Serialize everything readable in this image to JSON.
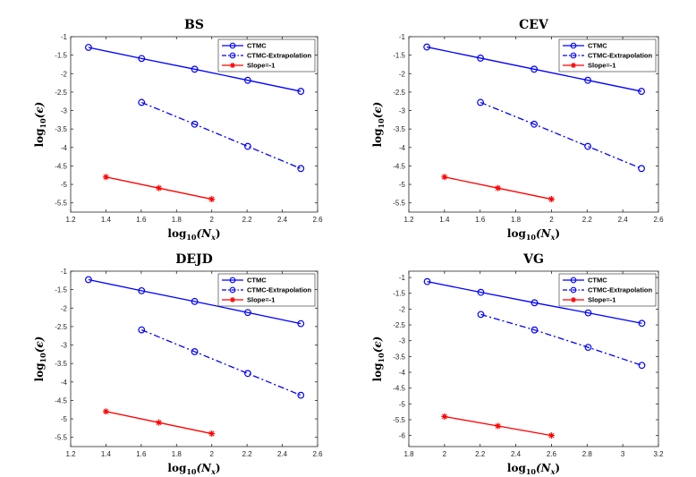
{
  "figure": {
    "background": "#ffffff",
    "series_colors": {
      "CTMC": "#0000ff",
      "CTMC-Extrapolation": "#0000ff",
      "Slope=-1": "#ff0000"
    }
  },
  "chart_data": [
    {
      "type": "line",
      "title": "BS",
      "xlabel": "log",
      "xlabel_sub": "10",
      "xlabel_var": "(N",
      "xlabel_var_sub": "x",
      "xlabel_end": ")",
      "ylabel": "log",
      "ylabel_sub": "10",
      "ylabel_var": "(ϵ)",
      "xlim": [
        1.2,
        2.6
      ],
      "ylim": [
        -5.75,
        -1
      ],
      "xticks": [
        1.2,
        1.4,
        1.6,
        1.8,
        2,
        2.2,
        2.4,
        2.6
      ],
      "xtick_labels": [
        "1.2",
        "1.4",
        "1.6",
        "1.8",
        "2",
        "2.2",
        "2.4",
        "2.6"
      ],
      "yticks": [
        -1,
        -1.5,
        -2,
        -2.5,
        -3,
        -3.5,
        -4,
        -4.5,
        -5,
        -5.5
      ],
      "ytick_labels": [
        "-1",
        "-1.5",
        "-2",
        "-2.5",
        "-3",
        "-3.5",
        "-4",
        "-4.5",
        "-5",
        "-5.5"
      ],
      "legend_position": "top-right",
      "series": [
        {
          "name": "CTMC",
          "style": "solid",
          "marker": "circle",
          "color": "#0000ff",
          "x": [
            1.301,
            1.602,
            1.903,
            2.204,
            2.505
          ],
          "y": [
            -1.29,
            -1.59,
            -1.88,
            -2.18,
            -2.48
          ]
        },
        {
          "name": "CTMC-Extrapolation",
          "style": "dashdot",
          "marker": "circle",
          "color": "#0000ff",
          "x": [
            1.602,
            1.903,
            2.204,
            2.505
          ],
          "y": [
            -2.78,
            -3.37,
            -3.97,
            -4.57
          ]
        },
        {
          "name": "Slope=-1",
          "style": "solid",
          "marker": "star",
          "color": "#ff0000",
          "x": [
            1.4,
            1.7,
            2.0
          ],
          "y": [
            -4.8,
            -5.1,
            -5.4
          ]
        }
      ]
    },
    {
      "type": "line",
      "title": "CEV",
      "xlabel": "log",
      "xlabel_sub": "10",
      "xlabel_var": "(N",
      "xlabel_var_sub": "x",
      "xlabel_end": ")",
      "ylabel": "log",
      "ylabel_sub": "10",
      "ylabel_var": "(ϵ)",
      "xlim": [
        1.2,
        2.6
      ],
      "ylim": [
        -5.75,
        -1
      ],
      "xticks": [
        1.2,
        1.4,
        1.6,
        1.8,
        2,
        2.2,
        2.4,
        2.6
      ],
      "xtick_labels": [
        "1.2",
        "1.4",
        "1.6",
        "1.8",
        "2",
        "2.2",
        "2.4",
        "2.6"
      ],
      "yticks": [
        -1,
        -1.5,
        -2,
        -2.5,
        -3,
        -3.5,
        -4,
        -4.5,
        -5,
        -5.5
      ],
      "ytick_labels": [
        "-1",
        "-1.5",
        "-2",
        "-2.5",
        "-3",
        "-3.5",
        "-4",
        "-4.5",
        "-5",
        "-5.5"
      ],
      "legend_position": "top-right",
      "series": [
        {
          "name": "CTMC",
          "style": "solid",
          "marker": "circle",
          "color": "#0000ff",
          "x": [
            1.301,
            1.602,
            1.903,
            2.204,
            2.505
          ],
          "y": [
            -1.28,
            -1.58,
            -1.88,
            -2.18,
            -2.48
          ]
        },
        {
          "name": "CTMC-Extrapolation",
          "style": "dashdot",
          "marker": "circle",
          "color": "#0000ff",
          "x": [
            1.602,
            1.903,
            2.204,
            2.505
          ],
          "y": [
            -2.78,
            -3.37,
            -3.97,
            -4.57
          ]
        },
        {
          "name": "Slope=-1",
          "style": "solid",
          "marker": "star",
          "color": "#ff0000",
          "x": [
            1.4,
            1.7,
            2.0
          ],
          "y": [
            -4.8,
            -5.1,
            -5.4
          ]
        }
      ]
    },
    {
      "type": "line",
      "title": "DEJD",
      "xlabel": "log",
      "xlabel_sub": "10",
      "xlabel_var": "(N",
      "xlabel_var_sub": "x",
      "xlabel_end": ")",
      "ylabel": "log",
      "ylabel_sub": "10",
      "ylabel_var": "(ϵ)",
      "xlim": [
        1.2,
        2.6
      ],
      "ylim": [
        -5.75,
        -1
      ],
      "xticks": [
        1.2,
        1.4,
        1.6,
        1.8,
        2,
        2.2,
        2.4,
        2.6
      ],
      "xtick_labels": [
        "1.2",
        "1.4",
        "1.6",
        "1.8",
        "2",
        "2.2",
        "2.4",
        "2.6"
      ],
      "yticks": [
        -1,
        -1.5,
        -2,
        -2.5,
        -3,
        -3.5,
        -4,
        -4.5,
        -5,
        -5.5
      ],
      "ytick_labels": [
        "-1",
        "-1.5",
        "-2",
        "-2.5",
        "-3",
        "-3.5",
        "-4",
        "-4.5",
        "-5",
        "-5.5"
      ],
      "legend_position": "top-right",
      "series": [
        {
          "name": "CTMC",
          "style": "solid",
          "marker": "circle",
          "color": "#0000ff",
          "x": [
            1.301,
            1.602,
            1.903,
            2.204,
            2.505
          ],
          "y": [
            -1.23,
            -1.53,
            -1.82,
            -2.12,
            -2.42
          ]
        },
        {
          "name": "CTMC-Extrapolation",
          "style": "dashdot",
          "marker": "circle",
          "color": "#0000ff",
          "x": [
            1.602,
            1.903,
            2.204,
            2.505
          ],
          "y": [
            -2.59,
            -3.18,
            -3.77,
            -4.36
          ]
        },
        {
          "name": "Slope=-1",
          "style": "solid",
          "marker": "star",
          "color": "#ff0000",
          "x": [
            1.4,
            1.7,
            2.0
          ],
          "y": [
            -4.8,
            -5.1,
            -5.4
          ]
        }
      ]
    },
    {
      "type": "line",
      "title": "VG",
      "xlabel": "log",
      "xlabel_sub": "10",
      "xlabel_var": "(N",
      "xlabel_var_sub": "x",
      "xlabel_end": ")",
      "ylabel": "log",
      "ylabel_sub": "10",
      "ylabel_var": "(ϵ)",
      "xlim": [
        1.8,
        3.2
      ],
      "ylim": [
        -6.35,
        -0.8
      ],
      "xticks": [
        1.8,
        2,
        2.2,
        2.4,
        2.6,
        2.8,
        3,
        3.2
      ],
      "xtick_labels": [
        "1.8",
        "2",
        "2.2",
        "2.4",
        "2.6",
        "2.8",
        "3",
        "3.2"
      ],
      "yticks": [
        -1,
        -1.5,
        -2,
        -2.5,
        -3,
        -3.5,
        -4,
        -4.5,
        -5,
        -5.5,
        -6
      ],
      "ytick_labels": [
        "-1",
        "-1.5",
        "-2",
        "-2.5",
        "-3",
        "-3.5",
        "-4",
        "-4.5",
        "-5",
        "-5.5",
        "-6"
      ],
      "legend_position": "top-right",
      "series": [
        {
          "name": "CTMC",
          "style": "solid",
          "marker": "circle",
          "color": "#0000ff",
          "x": [
            1.903,
            2.204,
            2.505,
            2.806,
            3.107
          ],
          "y": [
            -1.13,
            -1.47,
            -1.8,
            -2.12,
            -2.45
          ]
        },
        {
          "name": "CTMC-Extrapolation",
          "style": "dashdot",
          "marker": "circle",
          "color": "#0000ff",
          "x": [
            2.204,
            2.505,
            2.806,
            3.107
          ],
          "y": [
            -2.17,
            -2.66,
            -3.21,
            -3.78
          ]
        },
        {
          "name": "Slope=-1",
          "style": "solid",
          "marker": "star",
          "color": "#ff0000",
          "x": [
            2.0,
            2.3,
            2.6
          ],
          "y": [
            -5.4,
            -5.7,
            -6.0
          ]
        }
      ]
    }
  ]
}
